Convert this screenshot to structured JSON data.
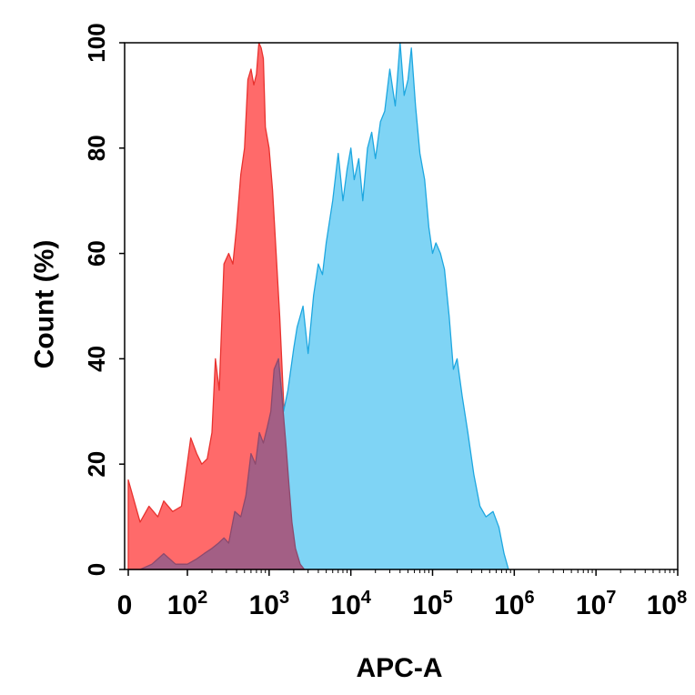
{
  "chart_data": {
    "type": "area",
    "xlabel": "APC-A",
    "ylabel": "Count (%)",
    "xscale": "log",
    "xlim": [
      0,
      100000000
    ],
    "ylim": [
      0,
      100
    ],
    "x_ticks": [
      {
        "base": "0",
        "exp": ""
      },
      {
        "base": "10",
        "exp": "2"
      },
      {
        "base": "10",
        "exp": "3"
      },
      {
        "base": "10",
        "exp": "4"
      },
      {
        "base": "10",
        "exp": "5"
      },
      {
        "base": "10",
        "exp": "6"
      },
      {
        "base": "10",
        "exp": "7"
      },
      {
        "base": "10",
        "exp": "8"
      }
    ],
    "y_ticks": [
      "0",
      "20",
      "40",
      "60",
      "80",
      "100"
    ],
    "grid": false,
    "legend": "none",
    "series": [
      {
        "color": "#ff6a6a",
        "stroke": "#e8322f",
        "points": [
          [
            0,
            17
          ],
          [
            20,
            9
          ],
          [
            35,
            12
          ],
          [
            50,
            10
          ],
          [
            60,
            13
          ],
          [
            75,
            11
          ],
          [
            90,
            12
          ],
          [
            110,
            25
          ],
          [
            130,
            22
          ],
          [
            150,
            20
          ],
          [
            175,
            21
          ],
          [
            200,
            26
          ],
          [
            220,
            40
          ],
          [
            245,
            34
          ],
          [
            280,
            58
          ],
          [
            320,
            60
          ],
          [
            360,
            58
          ],
          [
            400,
            65
          ],
          [
            450,
            75
          ],
          [
            500,
            80
          ],
          [
            550,
            93
          ],
          [
            600,
            95
          ],
          [
            650,
            92
          ],
          [
            700,
            94
          ],
          [
            750,
            100
          ],
          [
            800,
            99
          ],
          [
            850,
            97
          ],
          [
            900,
            84
          ],
          [
            1000,
            80
          ],
          [
            1100,
            72
          ],
          [
            1200,
            62
          ],
          [
            1350,
            48
          ],
          [
            1500,
            32
          ],
          [
            1650,
            18
          ],
          [
            1800,
            9
          ],
          [
            2000,
            6
          ],
          [
            2300,
            3
          ],
          [
            2700,
            1
          ],
          [
            3200,
            0
          ]
        ]
      },
      {
        "color": "#7fd4f5",
        "stroke": "#1ea7e0",
        "points": [
          [
            1300,
            40
          ],
          [
            1500,
            30
          ],
          [
            1700,
            34
          ],
          [
            2000,
            42
          ],
          [
            2200,
            46
          ],
          [
            2600,
            50
          ],
          [
            3000,
            41
          ],
          [
            3500,
            52
          ],
          [
            4000,
            58
          ],
          [
            4500,
            56
          ],
          [
            5000,
            62
          ],
          [
            6000,
            70
          ],
          [
            7000,
            79
          ],
          [
            8000,
            70
          ],
          [
            9000,
            76
          ],
          [
            10000,
            80
          ],
          [
            11000,
            74
          ],
          [
            12500,
            78
          ],
          [
            14000,
            70
          ],
          [
            16000,
            80
          ],
          [
            18000,
            83
          ],
          [
            20000,
            78
          ],
          [
            23000,
            85
          ],
          [
            26000,
            87
          ],
          [
            30000,
            95
          ],
          [
            35000,
            88
          ],
          [
            40000,
            100
          ],
          [
            45000,
            90
          ],
          [
            50000,
            93
          ],
          [
            55000,
            99
          ],
          [
            62000,
            88
          ],
          [
            70000,
            79
          ],
          [
            80000,
            74
          ],
          [
            90000,
            65
          ],
          [
            100000,
            60
          ],
          [
            110000,
            62
          ],
          [
            125000,
            60
          ],
          [
            140000,
            57
          ],
          [
            160000,
            48
          ],
          [
            180000,
            38
          ],
          [
            200000,
            40
          ],
          [
            230000,
            33
          ],
          [
            270000,
            26
          ],
          [
            320000,
            18
          ],
          [
            380000,
            12
          ],
          [
            450000,
            10
          ],
          [
            550000,
            11
          ],
          [
            650000,
            8
          ],
          [
            750000,
            3
          ],
          [
            850000,
            0
          ]
        ]
      },
      {
        "color": "#a35f85",
        "stroke": "#8c4a6e",
        "points": [
          [
            0,
            0
          ],
          [
            20,
            0
          ],
          [
            40,
            1
          ],
          [
            60,
            3
          ],
          [
            80,
            1
          ],
          [
            100,
            1
          ],
          [
            130,
            2
          ],
          [
            160,
            3
          ],
          [
            200,
            4
          ],
          [
            240,
            5
          ],
          [
            280,
            6
          ],
          [
            320,
            5
          ],
          [
            380,
            11
          ],
          [
            450,
            10
          ],
          [
            520,
            14
          ],
          [
            600,
            22
          ],
          [
            680,
            20
          ],
          [
            760,
            26
          ],
          [
            850,
            24
          ],
          [
            950,
            27
          ],
          [
            1050,
            30
          ],
          [
            1150,
            38
          ],
          [
            1300,
            40
          ],
          [
            1450,
            32
          ],
          [
            1600,
            24
          ],
          [
            1750,
            16
          ],
          [
            1900,
            9
          ],
          [
            2100,
            4
          ],
          [
            2400,
            1
          ],
          [
            2700,
            0
          ]
        ]
      }
    ]
  }
}
